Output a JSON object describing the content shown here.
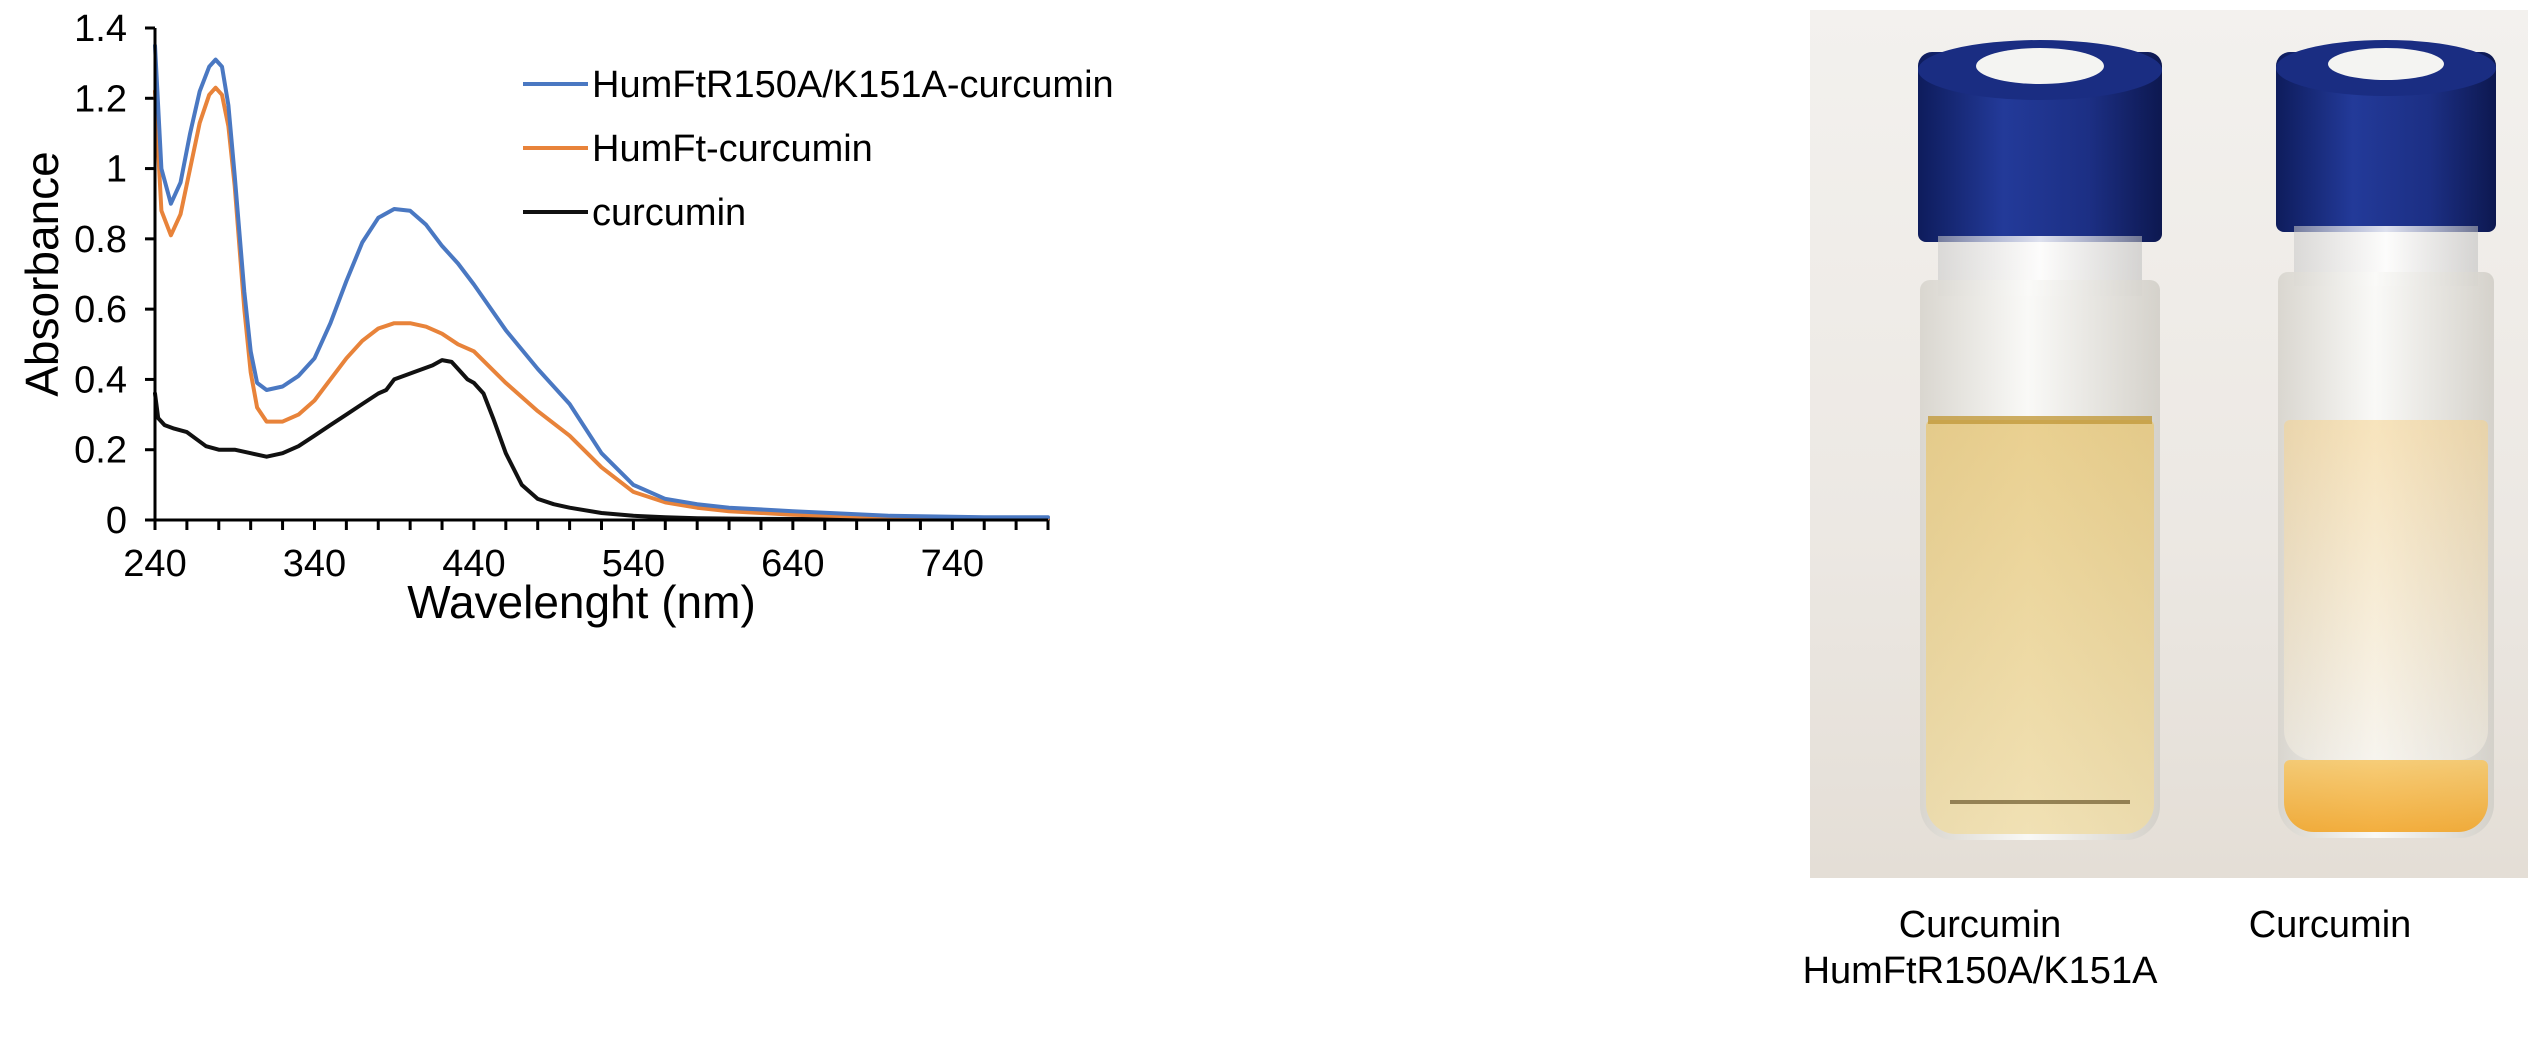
{
  "chart_data": {
    "type": "line",
    "xlabel": "Wavelenght (nm)",
    "ylabel": "Absorbance",
    "xlim": [
      240,
      800
    ],
    "ylim": [
      0,
      1.4
    ],
    "x_ticks": [
      240,
      340,
      440,
      540,
      640,
      740
    ],
    "y_ticks": [
      0,
      0.2,
      0.4,
      0.6,
      0.8,
      1,
      1.2,
      1.4
    ],
    "grid": false,
    "legend_position": "top-right",
    "series": [
      {
        "name": "HumFtR150A/K151A-curcumin",
        "color": "#4a78c2",
        "x": [
          240,
          244,
          250,
          256,
          262,
          268,
          274,
          278,
          282,
          286,
          290,
          296,
          300,
          304,
          310,
          320,
          330,
          340,
          350,
          360,
          370,
          380,
          390,
          400,
          410,
          420,
          430,
          440,
          460,
          480,
          500,
          520,
          540,
          560,
          580,
          600,
          640,
          700,
          760,
          800
        ],
        "y": [
          1.35,
          1.0,
          0.9,
          0.96,
          1.1,
          1.22,
          1.29,
          1.31,
          1.29,
          1.18,
          0.98,
          0.65,
          0.48,
          0.39,
          0.37,
          0.38,
          0.41,
          0.46,
          0.56,
          0.68,
          0.79,
          0.86,
          0.885,
          0.88,
          0.84,
          0.78,
          0.73,
          0.67,
          0.54,
          0.43,
          0.33,
          0.19,
          0.1,
          0.06,
          0.045,
          0.035,
          0.025,
          0.012,
          0.008,
          0.008
        ]
      },
      {
        "name": "HumFt-curcumin",
        "color": "#e8833a",
        "x": [
          240,
          244,
          250,
          256,
          262,
          268,
          274,
          278,
          282,
          286,
          290,
          296,
          300,
          304,
          310,
          320,
          330,
          340,
          350,
          360,
          370,
          380,
          390,
          400,
          410,
          420,
          430,
          440,
          460,
          480,
          500,
          520,
          540,
          560,
          580,
          600,
          640,
          700,
          760,
          800
        ],
        "y": [
          1.22,
          0.88,
          0.81,
          0.87,
          1.0,
          1.13,
          1.21,
          1.23,
          1.21,
          1.12,
          0.95,
          0.6,
          0.42,
          0.32,
          0.28,
          0.28,
          0.3,
          0.34,
          0.4,
          0.46,
          0.51,
          0.545,
          0.56,
          0.56,
          0.55,
          0.53,
          0.5,
          0.48,
          0.39,
          0.31,
          0.24,
          0.15,
          0.08,
          0.05,
          0.035,
          0.025,
          0.015,
          0.008,
          0.005,
          0.005
        ]
      },
      {
        "name": "curcumin",
        "color": "#111111",
        "x": [
          240,
          242,
          246,
          252,
          260,
          266,
          272,
          280,
          290,
          300,
          310,
          320,
          330,
          340,
          350,
          360,
          370,
          380,
          385,
          390,
          396,
          402,
          408,
          414,
          420,
          426,
          430,
          436,
          440,
          446,
          452,
          460,
          470,
          480,
          490,
          500,
          520,
          540,
          560,
          580,
          620,
          700,
          800
        ],
        "y": [
          0.36,
          0.29,
          0.27,
          0.26,
          0.25,
          0.23,
          0.21,
          0.2,
          0.2,
          0.19,
          0.18,
          0.19,
          0.21,
          0.24,
          0.27,
          0.3,
          0.33,
          0.36,
          0.37,
          0.4,
          0.41,
          0.42,
          0.43,
          0.44,
          0.455,
          0.45,
          0.43,
          0.4,
          0.39,
          0.36,
          0.29,
          0.19,
          0.1,
          0.06,
          0.045,
          0.035,
          0.02,
          0.012,
          0.008,
          0.005,
          0.003,
          0.002,
          0.002
        ]
      }
    ]
  },
  "photo": {
    "vials": [
      {
        "label_lines": [
          "Curcumin",
          "HumFtR150A/K151A"
        ],
        "liquid_color": "#e6c77a",
        "description_icon": "vial-icon"
      },
      {
        "label_lines": [
          "Curcumin"
        ],
        "liquid_color": "#f2a62a",
        "description_icon": "vial-icon"
      }
    ],
    "cap_color": "#1c2f84"
  }
}
